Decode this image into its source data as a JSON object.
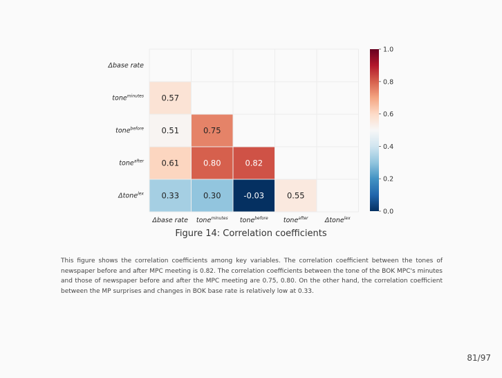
{
  "chart_data": {
    "type": "heatmap",
    "title": "Correlation coefficients",
    "rows": [
      {
        "base": "Δbase rate",
        "sup": ""
      },
      {
        "base": "tone",
        "sup": "minutes"
      },
      {
        "base": "tone",
        "sup": "before"
      },
      {
        "base": "tone",
        "sup": "after"
      },
      {
        "base": "Δtone",
        "sup": "lex"
      }
    ],
    "columns": [
      {
        "base": "Δbase rate",
        "sup": ""
      },
      {
        "base": "tone",
        "sup": "minutes"
      },
      {
        "base": "tone",
        "sup": "before"
      },
      {
        "base": "tone",
        "sup": "after"
      },
      {
        "base": "Δtone",
        "sup": "lex"
      }
    ],
    "values": [
      [
        null,
        null,
        null,
        null,
        null
      ],
      [
        0.57,
        null,
        null,
        null,
        null
      ],
      [
        0.51,
        0.75,
        null,
        null,
        null
      ],
      [
        0.61,
        0.8,
        0.82,
        null,
        null
      ],
      [
        0.33,
        0.3,
        -0.03,
        0.55,
        null
      ]
    ],
    "colorbar": {
      "range": [
        0.0,
        1.0
      ],
      "ticks": [
        "0.0",
        "0.2",
        "0.4",
        "0.6",
        "0.8",
        "1.0"
      ]
    }
  },
  "caption": {
    "label": "Figure 14:",
    "text": "Correlation coefficients"
  },
  "description": "This figure shows the correlation coefficients among key variables. The correlation coefficient between the tones of newspaper before and after MPC meeting is 0.82. The correlation coefficients between the tone of the BOK MPC's minutes and those of newspaper before and after the MPC meeting are 0.75, 0.80. On the other hand, the correlation coefficient between the MP surprises and changes in BOK base rate is relatively low at 0.33.",
  "page_number": "81/97",
  "colors": {
    "low": "#053061",
    "mid": "#f7f7f7",
    "high": "#67001f"
  }
}
